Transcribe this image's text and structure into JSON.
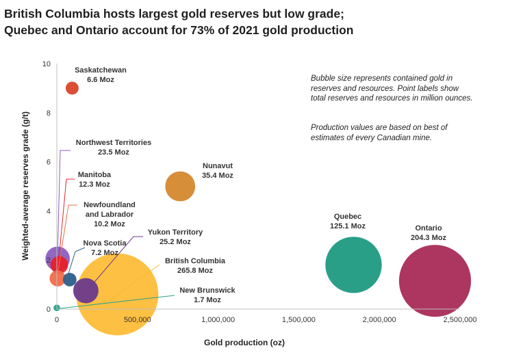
{
  "title_lines": [
    "British Columbia hosts largest gold reserves but low grade;",
    "Quebec and Ontario account for 73% of 2021 gold production"
  ],
  "notes": [
    "Bubble size represents contained gold in reserves and resources. Point labels show total reserves and resources in million ounces.",
    "Production values are based on best of estimates of every Canadian mine."
  ],
  "chart_data": {
    "type": "scatter",
    "xlabel": "Gold production (oz)",
    "ylabel": "Weighted-average reserves grade (g/t)",
    "xlim": [
      0,
      2500000
    ],
    "ylim": [
      0,
      10
    ],
    "x_ticks": [
      "0",
      "500,000",
      "1,000,000",
      "1,500,000",
      "2,000,000",
      "2,500,000"
    ],
    "y_ticks": [
      "0",
      "2",
      "4",
      "6",
      "8",
      "10"
    ],
    "grid": false,
    "points": [
      {
        "name": "Saskatchewan",
        "value_label": "6.6 Moz",
        "size": 6.6,
        "x": 95000,
        "y": 9.0,
        "color": "#d9462b"
      },
      {
        "name": "Northwest Territories",
        "value_label": "23.5 Moz",
        "size": 23.5,
        "x": 5000,
        "y": 2.05,
        "color": "#8b5fc0"
      },
      {
        "name": "Manitoba",
        "value_label": "12.3 Moz",
        "size": 12.3,
        "x": 15000,
        "y": 1.8,
        "color": "#e8202a"
      },
      {
        "name": "Newfoundland and Labrador",
        "value_label": "10.2 Moz",
        "size": 10.2,
        "x": 5000,
        "y": 1.25,
        "color": "#f26b4a"
      },
      {
        "name": "Nova Scotia",
        "value_label": "7.2 Moz",
        "size": 7.2,
        "x": 80000,
        "y": 1.2,
        "color": "#2c5f8a"
      },
      {
        "name": "Yukon Territory",
        "value_label": "25.2 Moz",
        "size": 25.2,
        "x": 180000,
        "y": 0.75,
        "color": "#6b3a8c"
      },
      {
        "name": "British Columbia",
        "value_label": "265.8 Moz",
        "size": 265.8,
        "x": 375000,
        "y": 0.6,
        "color": "#fdb92d"
      },
      {
        "name": "New Brunswick",
        "value_label": "1.7 Moz",
        "size": 1.7,
        "x": 0,
        "y": 0.05,
        "color": "#29a38a"
      },
      {
        "name": "Nunavut",
        "value_label": "35.4 Moz",
        "size": 35.4,
        "x": 765000,
        "y": 5.0,
        "color": "#d4882e"
      },
      {
        "name": "Quebec",
        "value_label": "125.1 Moz",
        "size": 125.1,
        "x": 1840000,
        "y": 1.8,
        "color": "#1f9a82"
      },
      {
        "name": "Ontario",
        "value_label": "204.3 Moz",
        "size": 204.3,
        "x": 2345000,
        "y": 1.15,
        "color": "#a3204f"
      }
    ]
  }
}
